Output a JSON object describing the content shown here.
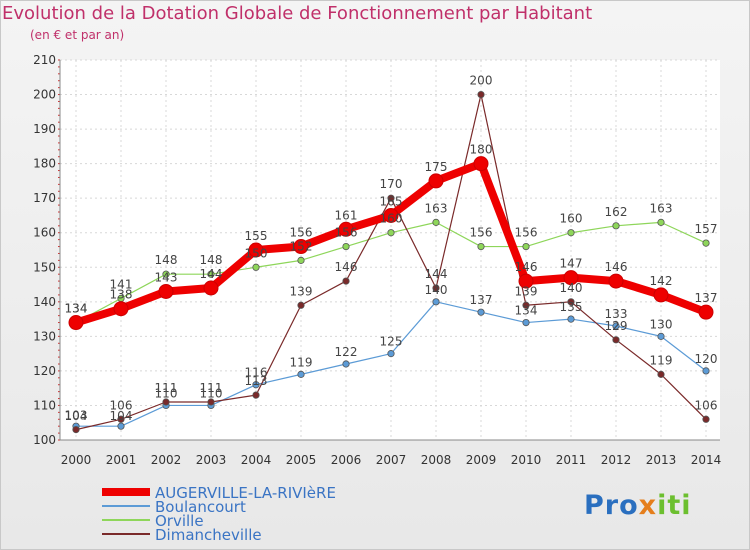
{
  "chart_data": {
    "type": "line",
    "title": "Evolution de la Dotation Globale de Fonctionnement par Habitant",
    "subtitle": "(en € et par an)",
    "xlabel": "",
    "ylabel": "",
    "ylim": [
      100,
      210
    ],
    "yticks": [
      100,
      110,
      120,
      130,
      140,
      150,
      160,
      170,
      180,
      190,
      200,
      210
    ],
    "categories": [
      "2000",
      "2001",
      "2002",
      "2003",
      "2004",
      "2005",
      "2006",
      "2007",
      "2008",
      "2009",
      "2010",
      "2011",
      "2012",
      "2013",
      "2014"
    ],
    "grid": true,
    "legend_position": "bottom-left",
    "series": [
      {
        "name": "AUGERVILLE-LA-RIVIèRE",
        "color": "#ee0000",
        "values": [
          134,
          138,
          143,
          144,
          155,
          156,
          161,
          165,
          175,
          180,
          146,
          147,
          146,
          142,
          137
        ],
        "labels": [
          "134",
          "138",
          "143",
          "144",
          "155",
          "156",
          "161",
          "165",
          "175",
          "180",
          "146",
          "147",
          "146",
          "142",
          "137"
        ]
      },
      {
        "name": "Boulancourt",
        "color": "#5c9bd6",
        "values": [
          104,
          104,
          110,
          110,
          116,
          119,
          122,
          125,
          140,
          137,
          134,
          135,
          133,
          130,
          120
        ],
        "labels": [
          "104",
          "104",
          "110",
          "110",
          "116",
          "119",
          "122",
          "125",
          "140",
          "137",
          "134",
          "135",
          "133",
          "130",
          "120"
        ]
      },
      {
        "name": "Orville",
        "color": "#8ed65a",
        "values": [
          134,
          141,
          148,
          148,
          150,
          152,
          156,
          160,
          163,
          156,
          156,
          160,
          162,
          163,
          157
        ],
        "labels": [
          "134",
          "141",
          "148",
          "148",
          "150",
          "152",
          "156",
          "160",
          "163",
          "156",
          "156",
          "160",
          "162",
          "163",
          "157"
        ]
      },
      {
        "name": "Dimancheville",
        "color": "#7a2a2a",
        "values": [
          103,
          106,
          111,
          111,
          113,
          139,
          146,
          170,
          144,
          200,
          139,
          140,
          129,
          119,
          106
        ],
        "labels": [
          "103",
          "106",
          "111",
          "111",
          "113",
          "139",
          "146",
          "170",
          "144",
          "200",
          "139",
          "140",
          "129",
          "119",
          "106"
        ]
      }
    ]
  },
  "branding": {
    "logo_a": "Pro",
    "logo_b": "x",
    "logo_c": "iti"
  }
}
